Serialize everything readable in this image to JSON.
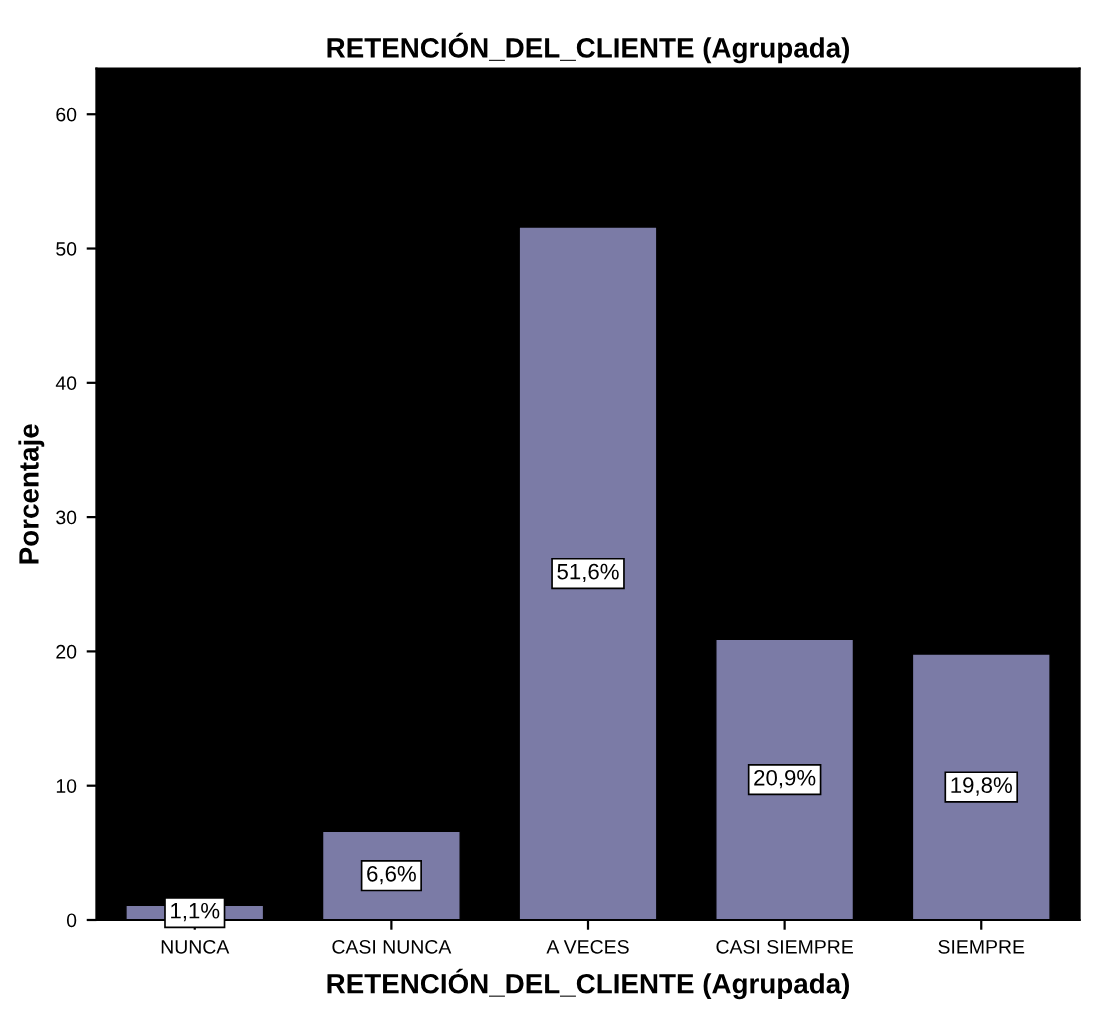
{
  "chart_data": {
    "type": "bar",
    "title": "RETENCIÓN_DEL_CLIENTE (Agrupada)",
    "xlabel": "RETENCIÓN_DEL_CLIENTE (Agrupada)",
    "ylabel": "Porcentaje",
    "categories": [
      "NUNCA",
      "CASI NUNCA",
      "A VECES",
      "CASI SIEMPRE",
      "SIEMPRE"
    ],
    "values": [
      1.1,
      6.6,
      51.6,
      20.9,
      19.8
    ],
    "value_labels": [
      "1,1%",
      "6,6%",
      "51,6%",
      "20,9%",
      "19,8%"
    ],
    "color": "#7b7ba6",
    "ylim": [
      0,
      63.4
    ],
    "yticks": [
      0,
      10,
      20,
      30,
      40,
      50,
      60
    ],
    "grid": false
  }
}
